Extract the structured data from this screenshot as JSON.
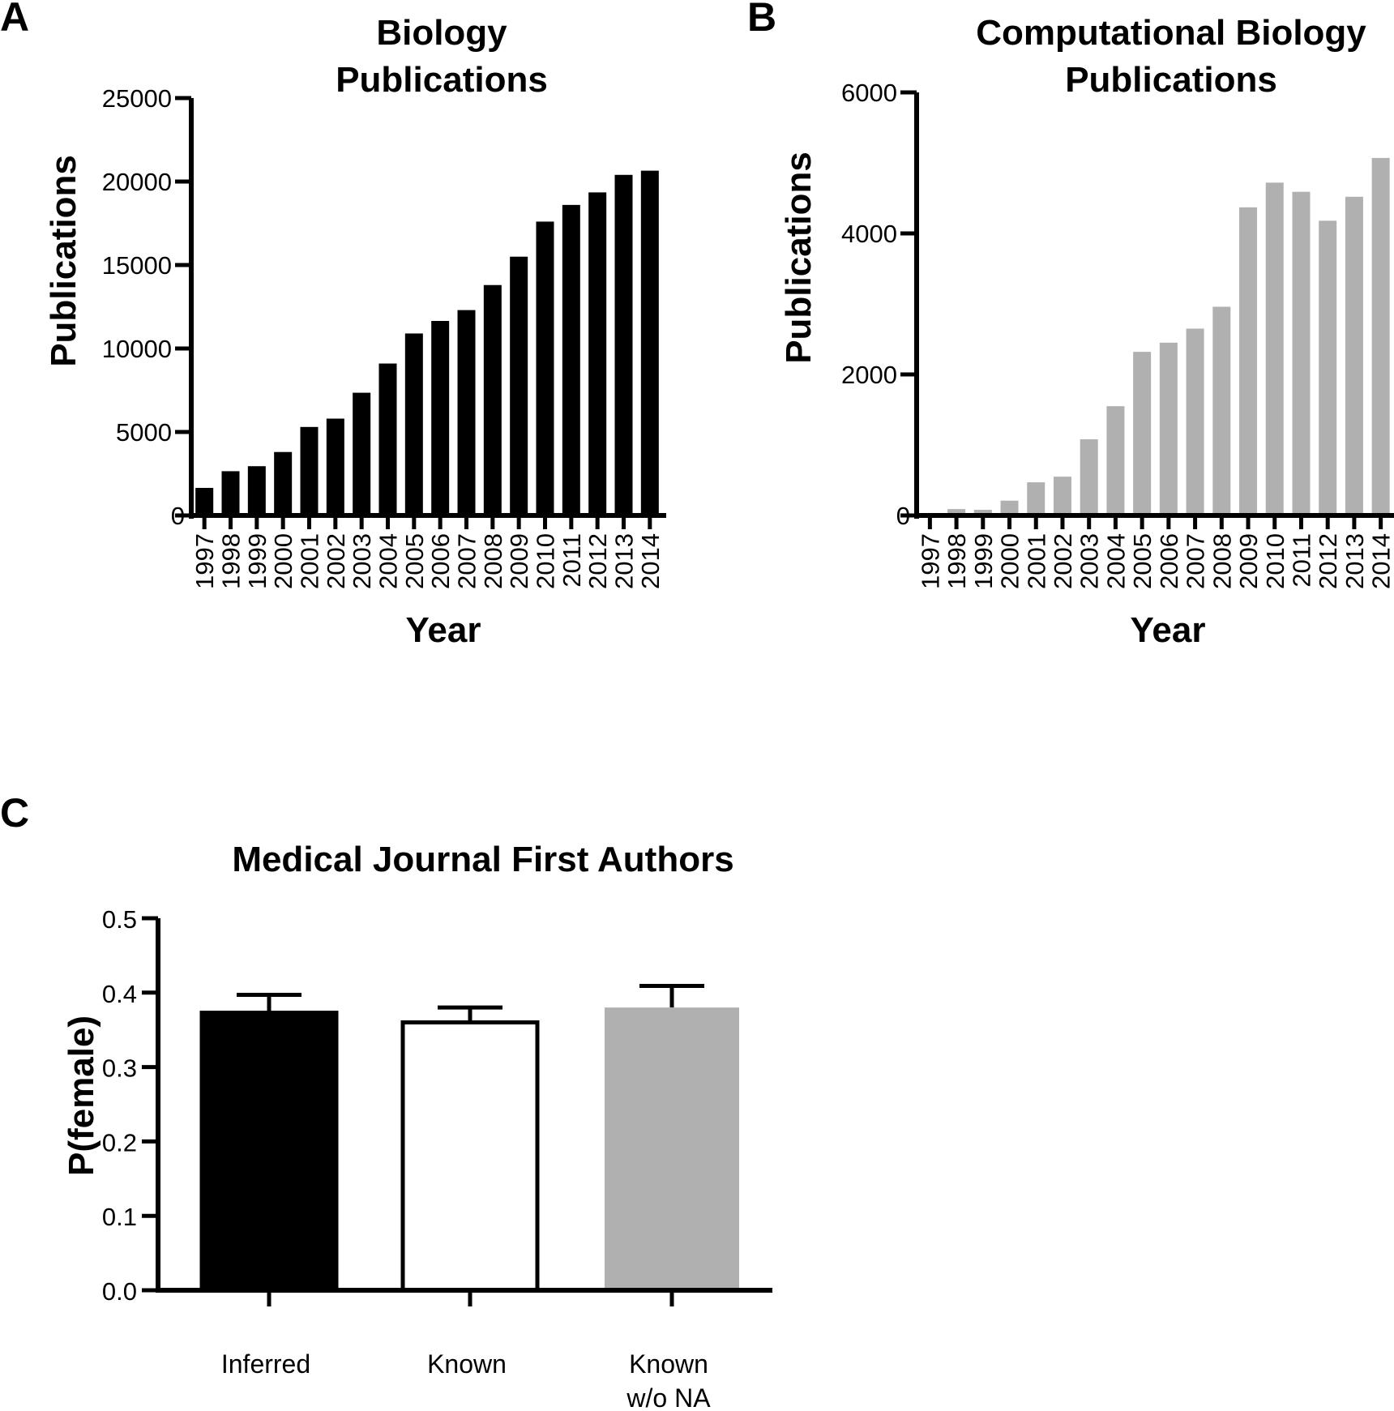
{
  "figure": {
    "panels": [
      "A",
      "B",
      "C"
    ]
  },
  "colors": {
    "black_bar": "#000000",
    "gray_bar": "#b0b0b0",
    "white_bar": "#ffffff",
    "axis": "#000000"
  },
  "chart_data": [
    {
      "type": "bar",
      "panel": "A",
      "title_lines": [
        "Biology",
        "Publications"
      ],
      "xlabel": "Year",
      "ylabel": "Publications",
      "ylim": [
        0,
        25000
      ],
      "yticks": [
        0,
        5000,
        10000,
        15000,
        20000,
        25000
      ],
      "categories": [
        "1997",
        "1998",
        "1999",
        "2000",
        "2001",
        "2002",
        "2003",
        "2004",
        "2005",
        "2006",
        "2007",
        "2008",
        "2009",
        "2010",
        "2011",
        "2012",
        "2013",
        "2014"
      ],
      "values": [
        1650,
        2650,
        2950,
        3800,
        5300,
        5800,
        7350,
        9100,
        10900,
        11650,
        12300,
        13800,
        15500,
        17600,
        18600,
        19350,
        20400,
        20650
      ],
      "bar_color": "#000000"
    },
    {
      "type": "bar",
      "panel": "B",
      "title_lines": [
        "Computational Biology",
        "Publications"
      ],
      "xlabel": "Year",
      "ylabel": "Publications",
      "ylim": [
        0,
        6000
      ],
      "yticks": [
        0,
        2000,
        4000,
        6000
      ],
      "categories": [
        "1997",
        "1998",
        "1999",
        "2000",
        "2001",
        "2002",
        "2003",
        "2004",
        "2005",
        "2006",
        "2007",
        "2008",
        "2009",
        "2010",
        "2011",
        "2012",
        "2013",
        "2014"
      ],
      "values": [
        20,
        90,
        80,
        210,
        470,
        550,
        1080,
        1550,
        2320,
        2450,
        2650,
        2960,
        4370,
        4720,
        4590,
        4180,
        4520,
        5070
      ],
      "bar_color": "#b0b0b0"
    },
    {
      "type": "bar",
      "panel": "C",
      "title": "Medical Journal First Authors",
      "xlabel": "",
      "ylabel": "P(female)",
      "ylim": [
        0,
        0.5
      ],
      "yticks": [
        "0.0",
        "0.1",
        "0.2",
        "0.3",
        "0.4",
        "0.5"
      ],
      "categories": [
        [
          "Inferred"
        ],
        [
          "Known"
        ],
        [
          "Known",
          "w/o NA"
        ]
      ],
      "values": [
        0.373,
        0.36,
        0.38
      ],
      "errors": [
        0.024,
        0.02,
        0.029
      ],
      "bar_colors": [
        "#000000",
        "#ffffff",
        "#b0b0b0"
      ]
    }
  ]
}
